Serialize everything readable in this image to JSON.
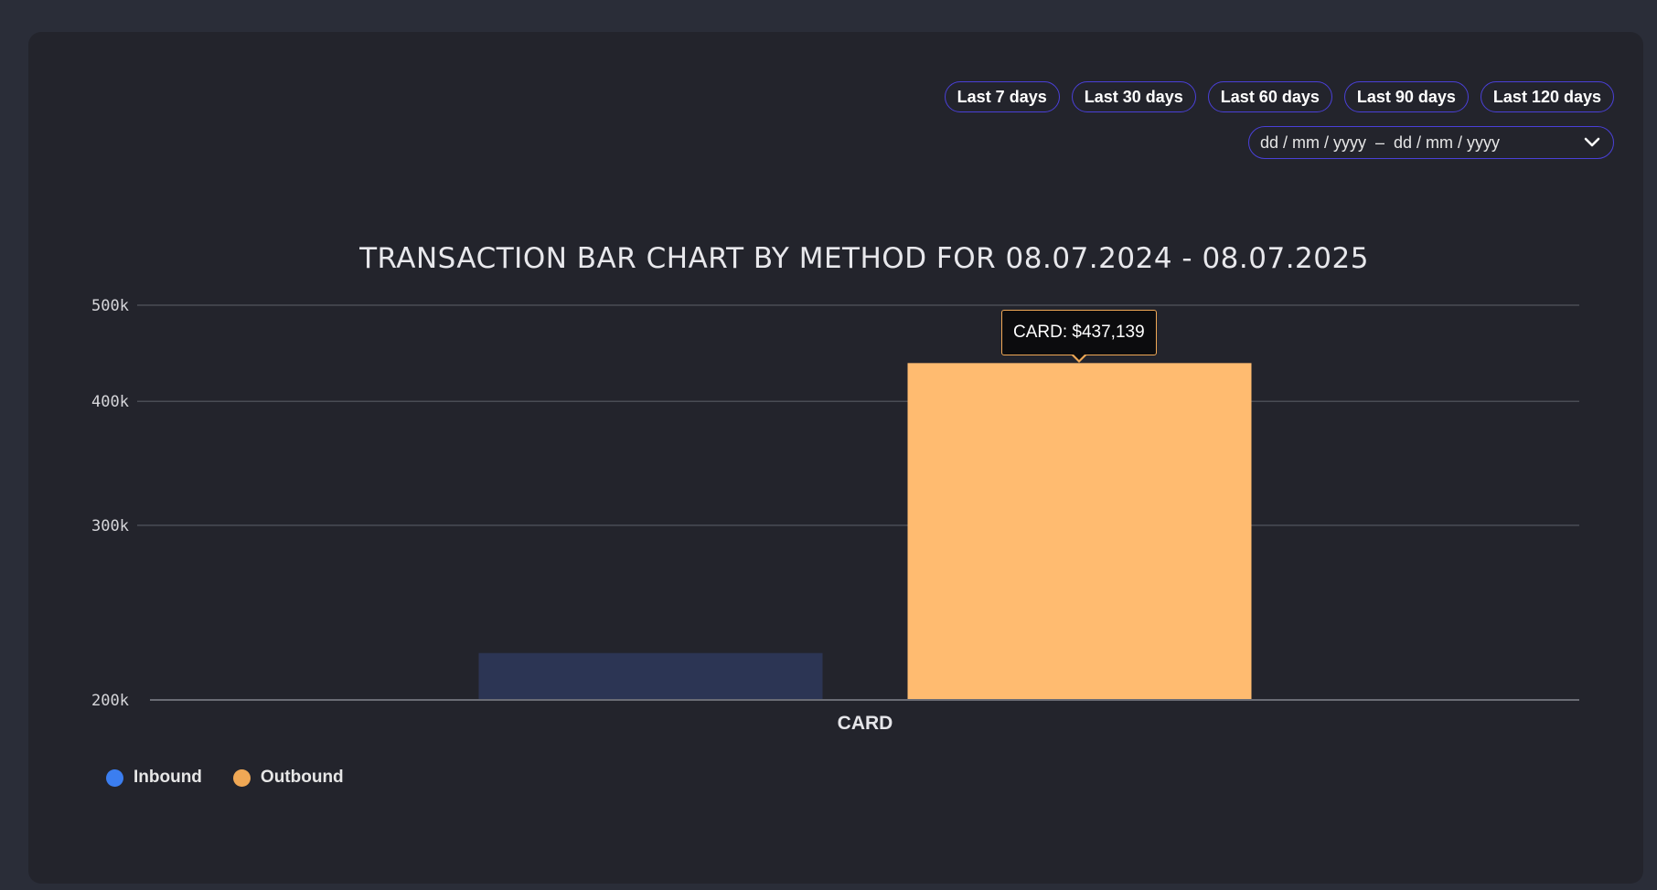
{
  "range_buttons": [
    "Last 7 days",
    "Last 30 days",
    "Last 60 days",
    "Last 90 days",
    "Last 120 days"
  ],
  "date_range": {
    "text": "dd / mm / yyyy  –  dd / mm / yyyy",
    "icon": "chevron-down-icon"
  },
  "tooltip": {
    "text": "CARD: $437,139"
  },
  "colors": {
    "inbound_bar": "#2c3554",
    "inbound_legend": "#3b7ef0",
    "outbound": "#ffbb70",
    "outbound_legend": "#f0a855",
    "button_border": "#4a40d8"
  },
  "chart_data": {
    "type": "bar",
    "title": "TRANSACTION BAR CHART BY METHOD FOR 08.07.2024 - 08.07.2025",
    "categories": [
      "CARD"
    ],
    "series": [
      {
        "name": "Inbound",
        "values": [
          223000
        ]
      },
      {
        "name": "Outbound",
        "values": [
          437139
        ]
      }
    ],
    "yscale": "log",
    "ylim": [
      200000,
      500000
    ],
    "yticks": [
      200000,
      300000,
      400000,
      500000
    ],
    "ytick_labels": [
      "200k",
      "300k",
      "400k",
      "500k"
    ],
    "grid": true,
    "legend_position": "bottom-left"
  }
}
